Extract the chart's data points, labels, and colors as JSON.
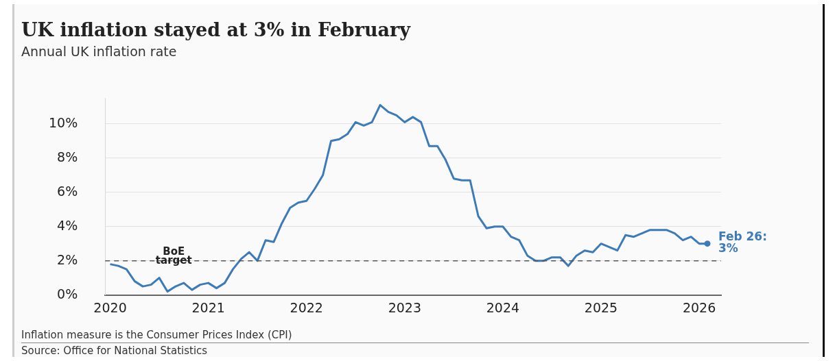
{
  "chart_data": {
    "type": "line",
    "title": "UK inflation stayed at 3% in February",
    "subtitle": "Annual UK inflation rate",
    "x": [
      "2020-01",
      "2020-02",
      "2020-03",
      "2020-04",
      "2020-05",
      "2020-06",
      "2020-07",
      "2020-08",
      "2020-09",
      "2020-10",
      "2020-11",
      "2020-12",
      "2021-01",
      "2021-02",
      "2021-03",
      "2021-04",
      "2021-05",
      "2021-06",
      "2021-07",
      "2021-08",
      "2021-09",
      "2021-10",
      "2021-11",
      "2021-12",
      "2022-01",
      "2022-02",
      "2022-03",
      "2022-04",
      "2022-05",
      "2022-06",
      "2022-07",
      "2022-08",
      "2022-09",
      "2022-10",
      "2022-11",
      "2022-12",
      "2023-01",
      "2023-02",
      "2023-03",
      "2023-04",
      "2023-05",
      "2023-06",
      "2023-07",
      "2023-08",
      "2023-09",
      "2023-10",
      "2023-11",
      "2023-12",
      "2024-01",
      "2024-02",
      "2024-03",
      "2024-04",
      "2024-05",
      "2024-06",
      "2024-07",
      "2024-08",
      "2024-09",
      "2024-10",
      "2024-11",
      "2024-12",
      "2025-01",
      "2025-02",
      "2025-03",
      "2025-04",
      "2025-05",
      "2025-06",
      "2025-07",
      "2025-08",
      "2025-09",
      "2025-10",
      "2025-11",
      "2025-12",
      "2026-01",
      "2026-02"
    ],
    "series": [
      {
        "color": "#3d7ab8",
        "values": [
          1.8,
          1.7,
          1.5,
          0.8,
          0.5,
          0.6,
          1.0,
          0.2,
          0.5,
          0.7,
          0.3,
          0.6,
          0.7,
          0.4,
          0.7,
          1.5,
          2.1,
          2.5,
          2.0,
          3.2,
          3.1,
          4.2,
          5.1,
          5.4,
          5.5,
          6.2,
          7.0,
          9.0,
          9.1,
          9.4,
          10.1,
          9.9,
          10.1,
          11.1,
          10.7,
          10.5,
          10.1,
          10.4,
          10.1,
          8.7,
          8.7,
          7.9,
          6.8,
          6.7,
          6.7,
          4.6,
          3.9,
          4.0,
          4.0,
          3.4,
          3.2,
          2.3,
          2.0,
          2.0,
          2.2,
          2.2,
          1.7,
          2.3,
          2.6,
          2.5,
          3.0,
          2.8,
          2.6,
          3.5,
          3.4,
          3.6,
          3.8,
          3.8,
          3.8,
          3.6,
          3.2,
          3.4,
          3.0,
          3.0
        ]
      }
    ],
    "xlim": [
      "2019-12-13",
      "2026-03-22"
    ],
    "xticks": [
      {
        "value": "2020",
        "label": "2020"
      },
      {
        "value": "2021",
        "label": "2021"
      },
      {
        "value": "2022",
        "label": "2022"
      },
      {
        "value": "2023",
        "label": "2023"
      },
      {
        "value": "2024",
        "label": "2024"
      },
      {
        "value": "2025",
        "label": "2025"
      },
      {
        "value": "2026",
        "label": "2026"
      }
    ],
    "ylim": [
      0,
      11.5
    ],
    "yticks": [
      {
        "value": 0,
        "label": "0%"
      },
      {
        "value": 2,
        "label": "2%"
      },
      {
        "value": 4,
        "label": "4%"
      },
      {
        "value": 6,
        "label": "6%"
      },
      {
        "value": 8,
        "label": "8%"
      },
      {
        "value": 10,
        "label": "10%"
      }
    ],
    "ref_lines": [
      {
        "axis": "y",
        "value": 2,
        "label": "BoE target",
        "color": "#555555",
        "line_style": "dashed"
      }
    ],
    "annotations": [
      {
        "text": "Feb 26: 3%",
        "x": "2026-02",
        "y": 3
      },
      "Inflation measure is the Consumer Prices Index (CPI)",
      "Source: Office for National Statistics"
    ],
    "grid": "y",
    "legend": false,
    "marker": "none",
    "line_style": "solid"
  }
}
